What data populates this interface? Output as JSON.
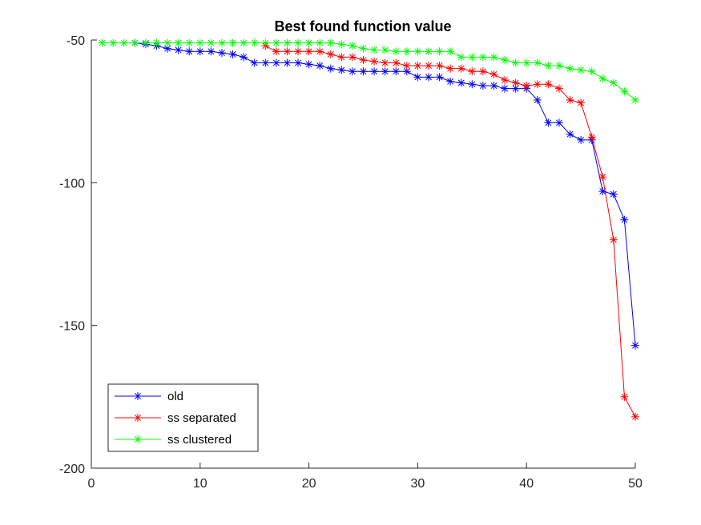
{
  "chart_data": {
    "type": "line",
    "title": "Best found function value",
    "xlabel": "",
    "ylabel": "",
    "xlim": [
      0,
      50
    ],
    "ylim": [
      -200,
      -50
    ],
    "xticks": [
      0,
      10,
      20,
      30,
      40,
      50
    ],
    "yticks": [
      -50,
      -100,
      -150,
      -200
    ],
    "grid": false,
    "legend_position": "bottom-left",
    "marker": "asterisk",
    "x": [
      1,
      2,
      3,
      4,
      5,
      6,
      7,
      8,
      9,
      10,
      11,
      12,
      13,
      14,
      15,
      16,
      17,
      18,
      19,
      20,
      21,
      22,
      23,
      24,
      25,
      26,
      27,
      28,
      29,
      30,
      31,
      32,
      33,
      34,
      35,
      36,
      37,
      38,
      39,
      40,
      41,
      42,
      43,
      44,
      45,
      46,
      47,
      48,
      49,
      50
    ],
    "series": [
      {
        "name": "old",
        "color": "#0000ff",
        "x": [
          4,
          5,
          6,
          7,
          8,
          9,
          10,
          11,
          12,
          13,
          14,
          15,
          16,
          17,
          18,
          19,
          20,
          21,
          22,
          23,
          24,
          25,
          26,
          27,
          28,
          29,
          30,
          31,
          32,
          33,
          34,
          35,
          36,
          37,
          38,
          39,
          40,
          41,
          42,
          43,
          44,
          45,
          46,
          47,
          48,
          49,
          50
        ],
        "values": [
          -51,
          -51.5,
          -52,
          -53,
          -53.5,
          -54,
          -54,
          -54,
          -54.5,
          -55,
          -56,
          -58,
          -58,
          -58,
          -58,
          -58,
          -58.5,
          -59,
          -60,
          -60.5,
          -61,
          -61,
          -61,
          -61,
          -61,
          -61,
          -63,
          -63,
          -63,
          -64.5,
          -65,
          -65.5,
          -66,
          -66,
          -67,
          -67,
          -67,
          -71,
          -79,
          -79,
          -83,
          -85,
          -85,
          -103,
          -104,
          -113,
          -157
        ]
      },
      {
        "name": "ss separated",
        "color": "#ff0000",
        "x": [
          16,
          17,
          18,
          19,
          20,
          21,
          22,
          23,
          24,
          25,
          26,
          27,
          28,
          29,
          30,
          31,
          32,
          33,
          34,
          35,
          36,
          37,
          38,
          39,
          40,
          41,
          42,
          43,
          44,
          45,
          46,
          47,
          48,
          49,
          50
        ],
        "values": [
          -52,
          -54,
          -54,
          -54,
          -54,
          -54,
          -55,
          -56,
          -56,
          -57,
          -57.5,
          -58,
          -58,
          -59,
          -59,
          -59,
          -59,
          -60,
          -60,
          -61,
          -61,
          -62,
          -64,
          -65,
          -66,
          -65.5,
          -65.5,
          -67,
          -71,
          -72,
          -84,
          -98,
          -120,
          -175,
          -182
        ]
      },
      {
        "name": "ss clustered",
        "color": "#00ff00",
        "x": [
          1,
          2,
          3,
          4,
          5,
          6,
          7,
          8,
          9,
          10,
          11,
          12,
          13,
          14,
          15,
          16,
          17,
          18,
          19,
          20,
          21,
          22,
          23,
          24,
          25,
          26,
          27,
          28,
          29,
          30,
          31,
          32,
          33,
          34,
          35,
          36,
          37,
          38,
          39,
          40,
          41,
          42,
          43,
          44,
          45,
          46,
          47,
          48,
          49,
          50
        ],
        "values": [
          -51,
          -51,
          -51,
          -51,
          -51,
          -51,
          -51,
          -51,
          -51,
          -51,
          -51,
          -51,
          -51,
          -51,
          -51,
          -51,
          -51,
          -51,
          -51,
          -51,
          -51,
          -51,
          -51.5,
          -52,
          -53,
          -53.5,
          -53.5,
          -54,
          -54,
          -54,
          -54,
          -54,
          -54,
          -56,
          -56,
          -56,
          -56,
          -57,
          -58,
          -58,
          -58,
          -59,
          -59,
          -60,
          -60.5,
          -61,
          -63.5,
          -65,
          -68,
          -71
        ]
      }
    ]
  }
}
